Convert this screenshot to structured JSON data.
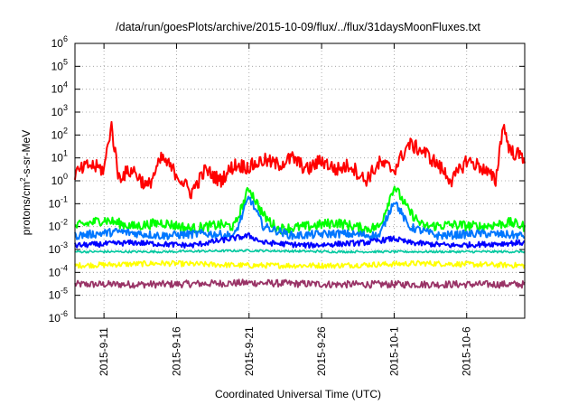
{
  "chart_data": {
    "type": "line",
    "title": "/data/run/goesPlots/archive/2015-10-09/flux/../flux/31daysMoonFluxes.txt",
    "xlabel": "Coordinated Universal Time (UTC)",
    "ylabel_parts": [
      "protons/cm",
      "2",
      "-s-sr-MeV"
    ],
    "yscale": "log",
    "ylim": [
      1e-06,
      1000000.0
    ],
    "xlim": [
      "2015-09-09",
      "2015-10-10"
    ],
    "grid": true,
    "legend": "none",
    "x_ticks": [
      "2015-9-11",
      "2015-9-16",
      "2015-9-21",
      "2015-9-26",
      "2015-10-1",
      "2015-10-6"
    ],
    "y_ticks": [
      {
        "base": "10",
        "exp": "-6"
      },
      {
        "base": "10",
        "exp": "-5"
      },
      {
        "base": "10",
        "exp": "-4"
      },
      {
        "base": "10",
        "exp": "-3"
      },
      {
        "base": "10",
        "exp": "-2"
      },
      {
        "base": "10",
        "exp": "-1"
      },
      {
        "base": "10",
        "exp": "0"
      },
      {
        "base": "10",
        "exp": "1"
      },
      {
        "base": "10",
        "exp": "2"
      },
      {
        "base": "10",
        "exp": "3"
      },
      {
        "base": "10",
        "exp": "4"
      },
      {
        "base": "10",
        "exp": "5"
      },
      {
        "base": "10",
        "exp": "6"
      }
    ],
    "series": [
      {
        "color": "#ff0000",
        "x": [
          "2015-09-09",
          "2015-09-10",
          "2015-09-11",
          "2015-09-11T12",
          "2015-09-12",
          "2015-09-13",
          "2015-09-14",
          "2015-09-15",
          "2015-09-16",
          "2015-09-17",
          "2015-09-18",
          "2015-09-19",
          "2015-09-20",
          "2015-09-21",
          "2015-09-22",
          "2015-09-23",
          "2015-09-24",
          "2015-09-25",
          "2015-09-26",
          "2015-09-27",
          "2015-09-28",
          "2015-09-29",
          "2015-09-30",
          "2015-10-01",
          "2015-10-02",
          "2015-10-03",
          "2015-10-04",
          "2015-10-05",
          "2015-10-06",
          "2015-10-07",
          "2015-10-08",
          "2015-10-08T12",
          "2015-10-09",
          "2015-10-10"
        ],
        "y": [
          2.0,
          5.0,
          3.0,
          300,
          1.5,
          3.0,
          0.5,
          10,
          2.0,
          0.3,
          3.0,
          1.0,
          5.0,
          4.0,
          8.0,
          5.0,
          10,
          3.0,
          8.0,
          3.0,
          5.0,
          1.0,
          6.0,
          3.0,
          40,
          20,
          5.0,
          1.0,
          8.0,
          4.0,
          1.0,
          300,
          20,
          10
        ]
      },
      {
        "color": "#00ff00",
        "x": [
          "2015-09-09",
          "2015-09-11",
          "2015-09-13",
          "2015-09-15",
          "2015-09-17",
          "2015-09-19",
          "2015-09-20",
          "2015-09-21",
          "2015-09-22",
          "2015-09-23",
          "2015-09-25",
          "2015-09-27",
          "2015-09-29",
          "2015-09-30",
          "2015-10-01",
          "2015-10-02",
          "2015-10-03",
          "2015-10-05",
          "2015-10-07",
          "2015-10-09",
          "2015-10-10"
        ],
        "y": [
          0.01,
          0.02,
          0.01,
          0.015,
          0.008,
          0.012,
          0.01,
          0.5,
          0.03,
          0.008,
          0.01,
          0.015,
          0.008,
          0.01,
          0.6,
          0.05,
          0.01,
          0.012,
          0.01,
          0.015,
          0.01
        ]
      },
      {
        "color": "#0077ff",
        "x": [
          "2015-09-09",
          "2015-09-12",
          "2015-09-15",
          "2015-09-18",
          "2015-09-20",
          "2015-09-21",
          "2015-09-22",
          "2015-09-24",
          "2015-09-27",
          "2015-09-30",
          "2015-10-01",
          "2015-10-02",
          "2015-10-04",
          "2015-10-07",
          "2015-10-10"
        ],
        "y": [
          0.004,
          0.006,
          0.004,
          0.005,
          0.004,
          0.2,
          0.01,
          0.004,
          0.005,
          0.004,
          0.15,
          0.01,
          0.004,
          0.005,
          0.004
        ]
      },
      {
        "color": "#0000ff",
        "x": [
          "2015-09-09",
          "2015-09-13",
          "2015-09-17",
          "2015-09-21",
          "2015-09-22",
          "2015-09-25",
          "2015-09-29",
          "2015-10-01",
          "2015-10-02",
          "2015-10-05",
          "2015-10-10"
        ],
        "y": [
          0.0015,
          0.002,
          0.0015,
          0.004,
          0.002,
          0.0015,
          0.002,
          0.003,
          0.002,
          0.0015,
          0.002
        ]
      },
      {
        "color": "#00c8a0",
        "x": [
          "2015-09-09",
          "2015-09-15",
          "2015-09-21",
          "2015-09-27",
          "2015-10-03",
          "2015-10-10"
        ],
        "y": [
          0.0008,
          0.0008,
          0.0009,
          0.0008,
          0.0008,
          0.0008
        ]
      },
      {
        "color": "#ffff00",
        "x": [
          "2015-09-09",
          "2015-09-15",
          "2015-09-21",
          "2015-09-27",
          "2015-10-03",
          "2015-10-10"
        ],
        "y": [
          0.0002,
          0.00025,
          0.0002,
          0.0002,
          0.00025,
          0.0002
        ]
      },
      {
        "color": "#993366",
        "x": [
          "2015-09-09",
          "2015-09-15",
          "2015-09-21",
          "2015-09-27",
          "2015-10-03",
          "2015-10-10"
        ],
        "y": [
          3e-05,
          3e-05,
          3.5e-05,
          3e-05,
          3e-05,
          3e-05
        ]
      }
    ]
  }
}
